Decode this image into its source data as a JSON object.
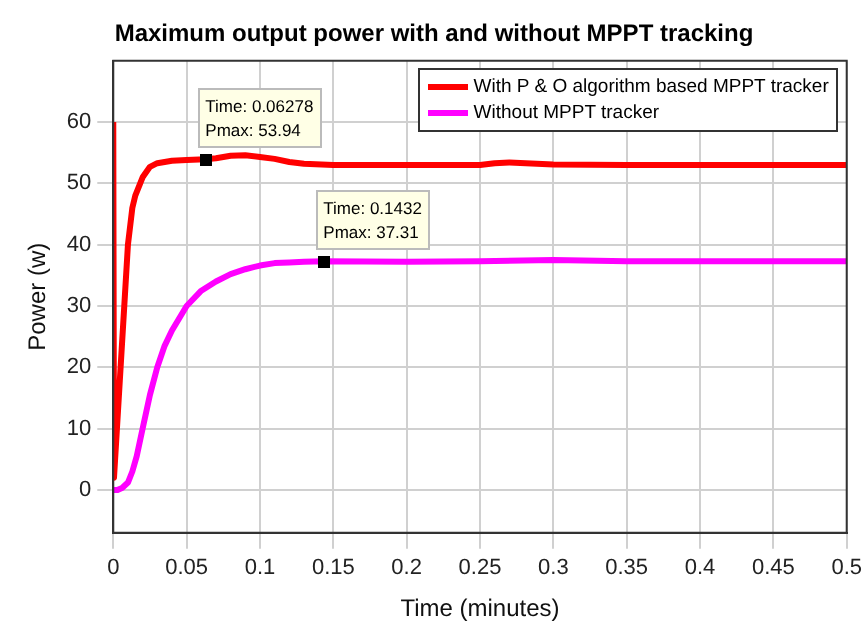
{
  "chart_data": {
    "type": "line",
    "title": "Maximum output power with and without MPPT tracking",
    "xlabel": "Time (minutes)",
    "ylabel": "Power (w)",
    "xlim": [
      0,
      0.5
    ],
    "xticks": [
      0,
      0.05,
      0.1,
      0.15,
      0.2,
      0.25,
      0.3,
      0.35,
      0.4,
      0.45,
      0.5
    ],
    "ylim": [
      -7,
      70
    ],
    "yticks": [
      0,
      10,
      20,
      30,
      40,
      50,
      60
    ],
    "grid": true,
    "legend": "top right",
    "marker": "none",
    "line_style": "solid",
    "series": [
      {
        "name": "With P & O algorithm based MPPT tracker",
        "color": "#ff0000",
        "x": [
          0,
          0.0005,
          0.003,
          0.005,
          0.008,
          0.01,
          0.013,
          0.015,
          0.02,
          0.025,
          0.03,
          0.04,
          0.05,
          0.06278,
          0.07,
          0.08,
          0.09,
          0.1,
          0.11,
          0.12,
          0.13,
          0.15,
          0.2,
          0.25,
          0.26,
          0.27,
          0.3,
          0.35,
          0.4,
          0.45,
          0.5
        ],
        "values": [
          60,
          2,
          12,
          20,
          32,
          40,
          46,
          48,
          51,
          52.7,
          53.3,
          53.7,
          53.8,
          53.94,
          54.1,
          54.5,
          54.6,
          54.3,
          54,
          53.5,
          53.2,
          53,
          53,
          53,
          53.3,
          53.4,
          53.1,
          53,
          53,
          53,
          53
        ]
      },
      {
        "name": "Without MPPT tracker",
        "color": "#ff00ff",
        "x": [
          0,
          0.003,
          0.006,
          0.01,
          0.013,
          0.016,
          0.02,
          0.025,
          0.03,
          0.035,
          0.04,
          0.05,
          0.06,
          0.07,
          0.08,
          0.09,
          0.1,
          0.11,
          0.12,
          0.13,
          0.1432,
          0.2,
          0.25,
          0.3,
          0.35,
          0.4,
          0.45,
          0.5
        ],
        "values": [
          0,
          0,
          0.3,
          1.2,
          3,
          5.5,
          10,
          15.5,
          20,
          23.5,
          26,
          30,
          32.5,
          34,
          35.2,
          36,
          36.6,
          37,
          37.1,
          37.2,
          37.31,
          37.2,
          37.3,
          37.5,
          37.3,
          37.3,
          37.3,
          37.3
        ]
      }
    ],
    "annotations": [
      {
        "text": "Time: 0.06278\nPmax: 53.94",
        "x": 0.06278,
        "y": 53.94
      },
      {
        "text": "Time: 0.1432\nPmax: 37.31",
        "x": 0.1432,
        "y": 37.31
      }
    ]
  }
}
